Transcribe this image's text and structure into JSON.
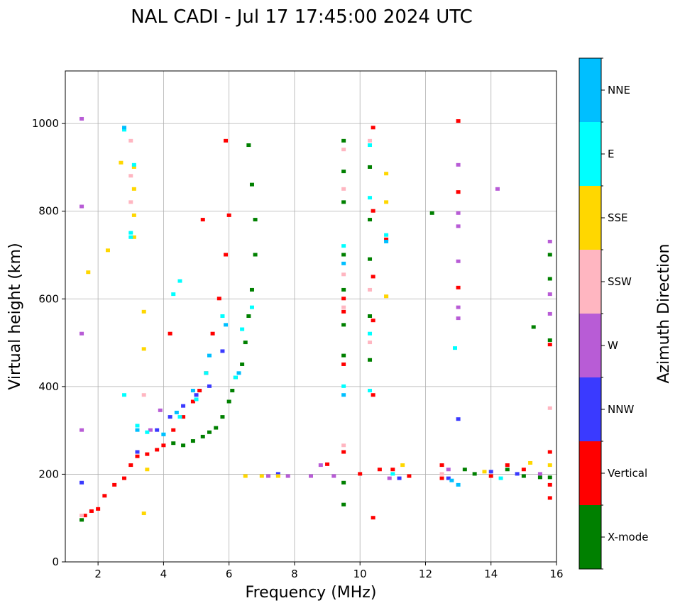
{
  "chart_data": {
    "type": "scatter",
    "title": "NAL CADI - Jul 17 17:45:00 2024 UTC",
    "xlabel": "Frequency (MHz)",
    "ylabel": "Virtual height (km)",
    "xlim": [
      1,
      16
    ],
    "ylim": [
      0,
      1120
    ],
    "xticks": [
      2,
      4,
      6,
      8,
      10,
      12,
      14,
      16
    ],
    "yticks": [
      0,
      200,
      400,
      600,
      800,
      1000
    ],
    "grid": true,
    "colorbar": {
      "label": "Azimuth Direction",
      "categories": [
        "X-mode",
        "Vertical",
        "NNW",
        "W",
        "SSW",
        "SSE",
        "E",
        "NNE"
      ],
      "colors": [
        "#008000",
        "#ff0000",
        "#3a3aff",
        "#b85cd6",
        "#ffb6c1",
        "#ffd700",
        "#00ffff",
        "#00bfff"
      ]
    },
    "series": [
      {
        "name": "X-mode",
        "points": [
          [
            1.5,
            95
          ],
          [
            4.3,
            270
          ],
          [
            4.6,
            265
          ],
          [
            4.9,
            275
          ],
          [
            5.2,
            285
          ],
          [
            5.4,
            295
          ],
          [
            5.6,
            305
          ],
          [
            5.8,
            330
          ],
          [
            6.0,
            365
          ],
          [
            6.1,
            390
          ],
          [
            6.2,
            420
          ],
          [
            6.4,
            450
          ],
          [
            6.5,
            500
          ],
          [
            6.6,
            560
          ],
          [
            6.7,
            620
          ],
          [
            6.8,
            700
          ],
          [
            6.6,
            950
          ],
          [
            6.7,
            860
          ],
          [
            6.8,
            780
          ],
          [
            9.5,
            960
          ],
          [
            9.5,
            890
          ],
          [
            9.5,
            820
          ],
          [
            9.5,
            700
          ],
          [
            9.5,
            620
          ],
          [
            9.5,
            540
          ],
          [
            9.5,
            470
          ],
          [
            9.5,
            180
          ],
          [
            9.5,
            130
          ],
          [
            10.3,
            900
          ],
          [
            10.3,
            780
          ],
          [
            10.3,
            690
          ],
          [
            10.3,
            560
          ],
          [
            10.3,
            460
          ],
          [
            12.2,
            795
          ],
          [
            13.2,
            210
          ],
          [
            13.5,
            200
          ],
          [
            14.5,
            210
          ],
          [
            15.0,
            195
          ],
          [
            15.5,
            192
          ],
          [
            15.8,
            192
          ],
          [
            15.8,
            505
          ],
          [
            15.8,
            645
          ],
          [
            15.8,
            700
          ],
          [
            15.3,
            535
          ]
        ]
      },
      {
        "name": "Vertical",
        "points": [
          [
            1.6,
            105
          ],
          [
            1.8,
            115
          ],
          [
            2.0,
            120
          ],
          [
            2.2,
            150
          ],
          [
            2.5,
            175
          ],
          [
            2.8,
            190
          ],
          [
            3.0,
            220
          ],
          [
            3.2,
            240
          ],
          [
            3.5,
            245
          ],
          [
            3.8,
            255
          ],
          [
            4.0,
            265
          ],
          [
            4.3,
            300
          ],
          [
            4.6,
            330
          ],
          [
            4.9,
            365
          ],
          [
            5.1,
            390
          ],
          [
            5.3,
            430
          ],
          [
            5.5,
            520
          ],
          [
            5.7,
            600
          ],
          [
            5.9,
            700
          ],
          [
            6.0,
            790
          ],
          [
            5.9,
            960
          ],
          [
            5.2,
            780
          ],
          [
            4.2,
            520
          ],
          [
            9.0,
            222
          ],
          [
            9.5,
            600
          ],
          [
            9.5,
            570
          ],
          [
            9.5,
            450
          ],
          [
            9.5,
            250
          ],
          [
            10.0,
            200
          ],
          [
            10.4,
            990
          ],
          [
            10.4,
            800
          ],
          [
            10.4,
            650
          ],
          [
            10.4,
            550
          ],
          [
            10.4,
            380
          ],
          [
            10.4,
            100
          ],
          [
            10.6,
            210
          ],
          [
            10.8,
            735
          ],
          [
            11.0,
            210
          ],
          [
            11.5,
            195
          ],
          [
            12.5,
            220
          ],
          [
            12.5,
            190
          ],
          [
            13.0,
            1005
          ],
          [
            13.0,
            843
          ],
          [
            13.0,
            625
          ],
          [
            14.0,
            195
          ],
          [
            14.5,
            220
          ],
          [
            15.0,
            210
          ],
          [
            15.8,
            250
          ],
          [
            15.8,
            175
          ],
          [
            15.8,
            145
          ],
          [
            15.8,
            495
          ]
        ]
      },
      {
        "name": "NNW",
        "points": [
          [
            1.5,
            180
          ],
          [
            3.2,
            250
          ],
          [
            3.8,
            300
          ],
          [
            4.2,
            330
          ],
          [
            4.6,
            355
          ],
          [
            5.0,
            380
          ],
          [
            5.4,
            400
          ],
          [
            5.8,
            480
          ],
          [
            7.5,
            200
          ],
          [
            11.2,
            190
          ],
          [
            12.7,
            190
          ],
          [
            13.0,
            325
          ],
          [
            14.0,
            205
          ],
          [
            14.8,
            200
          ]
        ]
      },
      {
        "name": "W",
        "points": [
          [
            1.5,
            1010
          ],
          [
            1.5,
            810
          ],
          [
            1.5,
            520
          ],
          [
            1.5,
            300
          ],
          [
            3.6,
            300
          ],
          [
            3.9,
            345
          ],
          [
            7.2,
            195
          ],
          [
            7.8,
            195
          ],
          [
            8.5,
            195
          ],
          [
            8.8,
            220
          ],
          [
            9.2,
            195
          ],
          [
            10.9,
            190
          ],
          [
            12.7,
            210
          ],
          [
            13.0,
            905
          ],
          [
            13.0,
            795
          ],
          [
            13.0,
            765
          ],
          [
            13.0,
            685
          ],
          [
            13.0,
            580
          ],
          [
            13.0,
            555
          ],
          [
            14.2,
            850
          ],
          [
            15.5,
            200
          ],
          [
            15.8,
            730
          ],
          [
            15.8,
            610
          ],
          [
            15.8,
            565
          ]
        ]
      },
      {
        "name": "SSW",
        "points": [
          [
            1.5,
            105
          ],
          [
            3.0,
            960
          ],
          [
            3.0,
            880
          ],
          [
            3.0,
            820
          ],
          [
            3.4,
            380
          ],
          [
            9.5,
            850
          ],
          [
            9.5,
            655
          ],
          [
            9.5,
            580
          ],
          [
            9.5,
            940
          ],
          [
            9.5,
            265
          ],
          [
            10.3,
            960
          ],
          [
            10.3,
            620
          ],
          [
            10.3,
            500
          ],
          [
            10.8,
            605
          ],
          [
            12.5,
            200
          ],
          [
            15.8,
            350
          ]
        ]
      },
      {
        "name": "SSE",
        "points": [
          [
            1.7,
            660
          ],
          [
            2.3,
            710
          ],
          [
            2.7,
            910
          ],
          [
            3.1,
            900
          ],
          [
            3.1,
            850
          ],
          [
            3.1,
            790
          ],
          [
            3.1,
            740
          ],
          [
            3.4,
            570
          ],
          [
            3.4,
            485
          ],
          [
            3.4,
            110
          ],
          [
            3.5,
            210
          ],
          [
            6.5,
            195
          ],
          [
            7.0,
            195
          ],
          [
            7.5,
            195
          ],
          [
            10.8,
            885
          ],
          [
            10.8,
            820
          ],
          [
            10.8,
            605
          ],
          [
            11.3,
            220
          ],
          [
            13.8,
            205
          ],
          [
            15.2,
            225
          ],
          [
            15.8,
            220
          ]
        ]
      },
      {
        "name": "E",
        "points": [
          [
            2.8,
            985
          ],
          [
            3.1,
            905
          ],
          [
            3.0,
            750
          ],
          [
            3.0,
            740
          ],
          [
            2.8,
            380
          ],
          [
            3.2,
            310
          ],
          [
            3.5,
            295
          ],
          [
            4.0,
            290
          ],
          [
            4.5,
            330
          ],
          [
            5.0,
            370
          ],
          [
            5.3,
            430
          ],
          [
            4.3,
            610
          ],
          [
            4.5,
            640
          ],
          [
            5.8,
            560
          ],
          [
            6.2,
            420
          ],
          [
            6.4,
            530
          ],
          [
            6.7,
            580
          ],
          [
            9.5,
            720
          ],
          [
            9.5,
            400
          ],
          [
            10.3,
            950
          ],
          [
            10.3,
            830
          ],
          [
            10.3,
            520
          ],
          [
            10.3,
            390
          ],
          [
            10.8,
            745
          ],
          [
            11.0,
            200
          ],
          [
            12.9,
            487
          ],
          [
            14.3,
            190
          ]
        ]
      },
      {
        "name": "NNE",
        "points": [
          [
            2.8,
            990
          ],
          [
            3.2,
            300
          ],
          [
            4.0,
            290
          ],
          [
            4.4,
            340
          ],
          [
            4.9,
            390
          ],
          [
            5.4,
            470
          ],
          [
            5.9,
            540
          ],
          [
            6.3,
            430
          ],
          [
            9.5,
            680
          ],
          [
            9.5,
            380
          ],
          [
            10.8,
            730
          ],
          [
            12.8,
            185
          ],
          [
            13.0,
            175
          ]
        ]
      }
    ]
  }
}
